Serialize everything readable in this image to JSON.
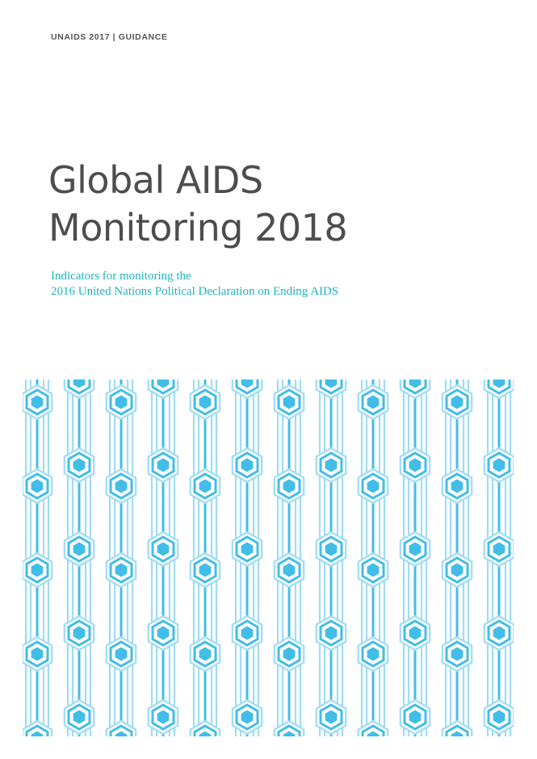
{
  "document": {
    "header_label": "UNAIDS 2017 | GUIDANCE",
    "title_lines": [
      "Global AIDS",
      "Monitoring 2018"
    ],
    "subtitle_lines": [
      "Indicators for monitoring the",
      "2016 United Nations Political Declaration on Ending AIDS"
    ]
  },
  "colors": {
    "accent_teal": "#1fb3bf",
    "pattern_dark": "#42bde8",
    "pattern_light": "#9fdcf4",
    "title_gray": "#4d4d4f"
  },
  "pattern": {
    "motif": "hexagon-chain",
    "icon": "hexagon-network-pattern"
  }
}
